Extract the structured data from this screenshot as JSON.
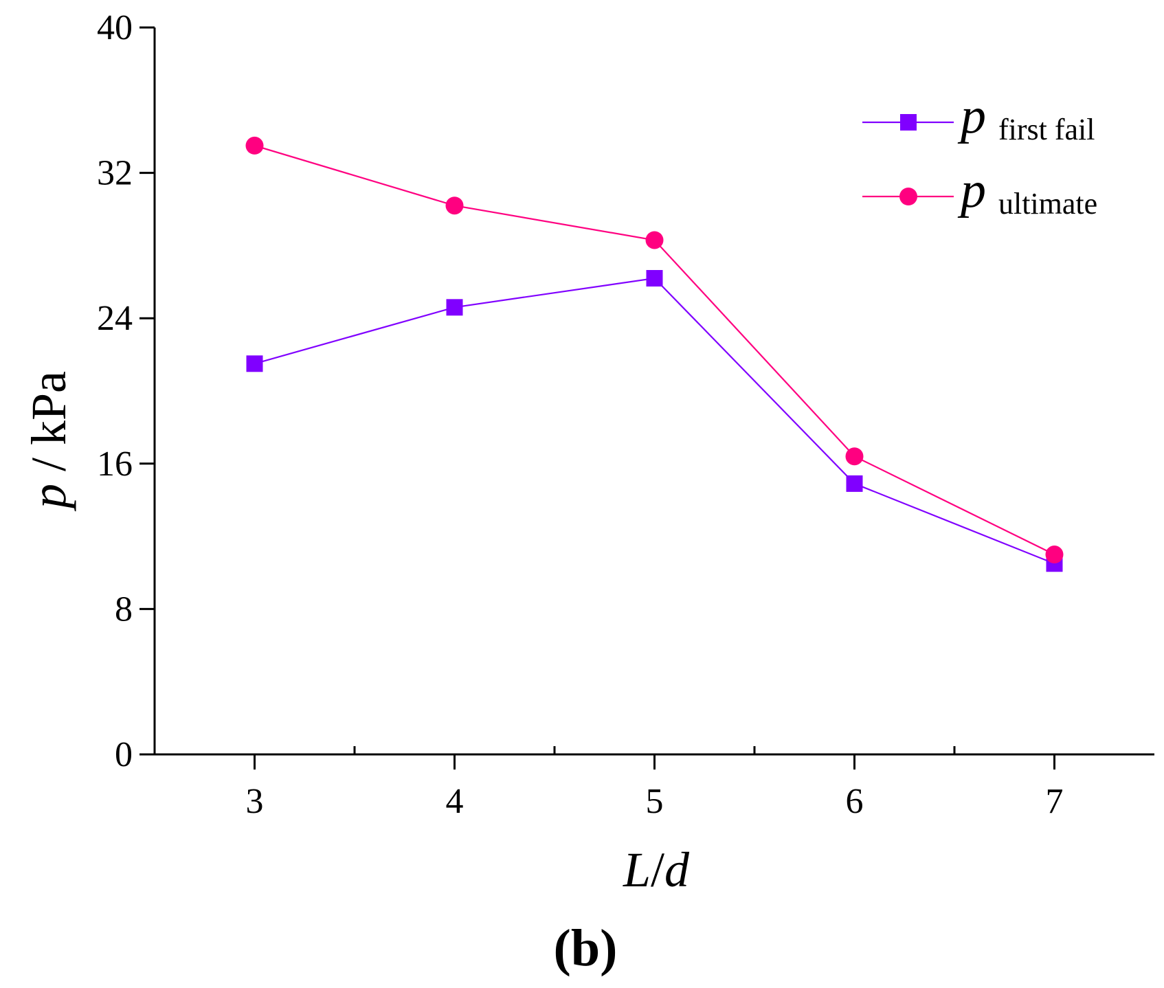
{
  "chart_data": {
    "type": "line",
    "title": "",
    "panel_label": "(b)",
    "xlabel": {
      "italic": "L",
      "slash": "/",
      "italic2": "d"
    },
    "ylabel": {
      "italic": "p",
      "rest": " / kPa"
    },
    "x": [
      3,
      4,
      5,
      6,
      7
    ],
    "xlim": [
      2.5,
      7.5
    ],
    "ylim": [
      0,
      40
    ],
    "xticks": [
      3,
      4,
      5,
      6,
      7
    ],
    "xticks_minor": [
      3.5,
      4.5,
      5.5,
      6.5
    ],
    "yticks": [
      0,
      8,
      16,
      24,
      32,
      40
    ],
    "grid": false,
    "legend_position": "top-right",
    "series": [
      {
        "name": "p first fail",
        "legend_main": "p",
        "legend_sub": "first fail",
        "color": "#8000ff",
        "marker": "square",
        "values": [
          21.5,
          24.6,
          26.2,
          14.9,
          10.5
        ]
      },
      {
        "name": "p ultimate",
        "legend_main": "p",
        "legend_sub": "ultimate",
        "color": "#ff0080",
        "marker": "circle",
        "values": [
          33.5,
          30.2,
          28.3,
          16.4,
          11.0
        ]
      }
    ]
  }
}
